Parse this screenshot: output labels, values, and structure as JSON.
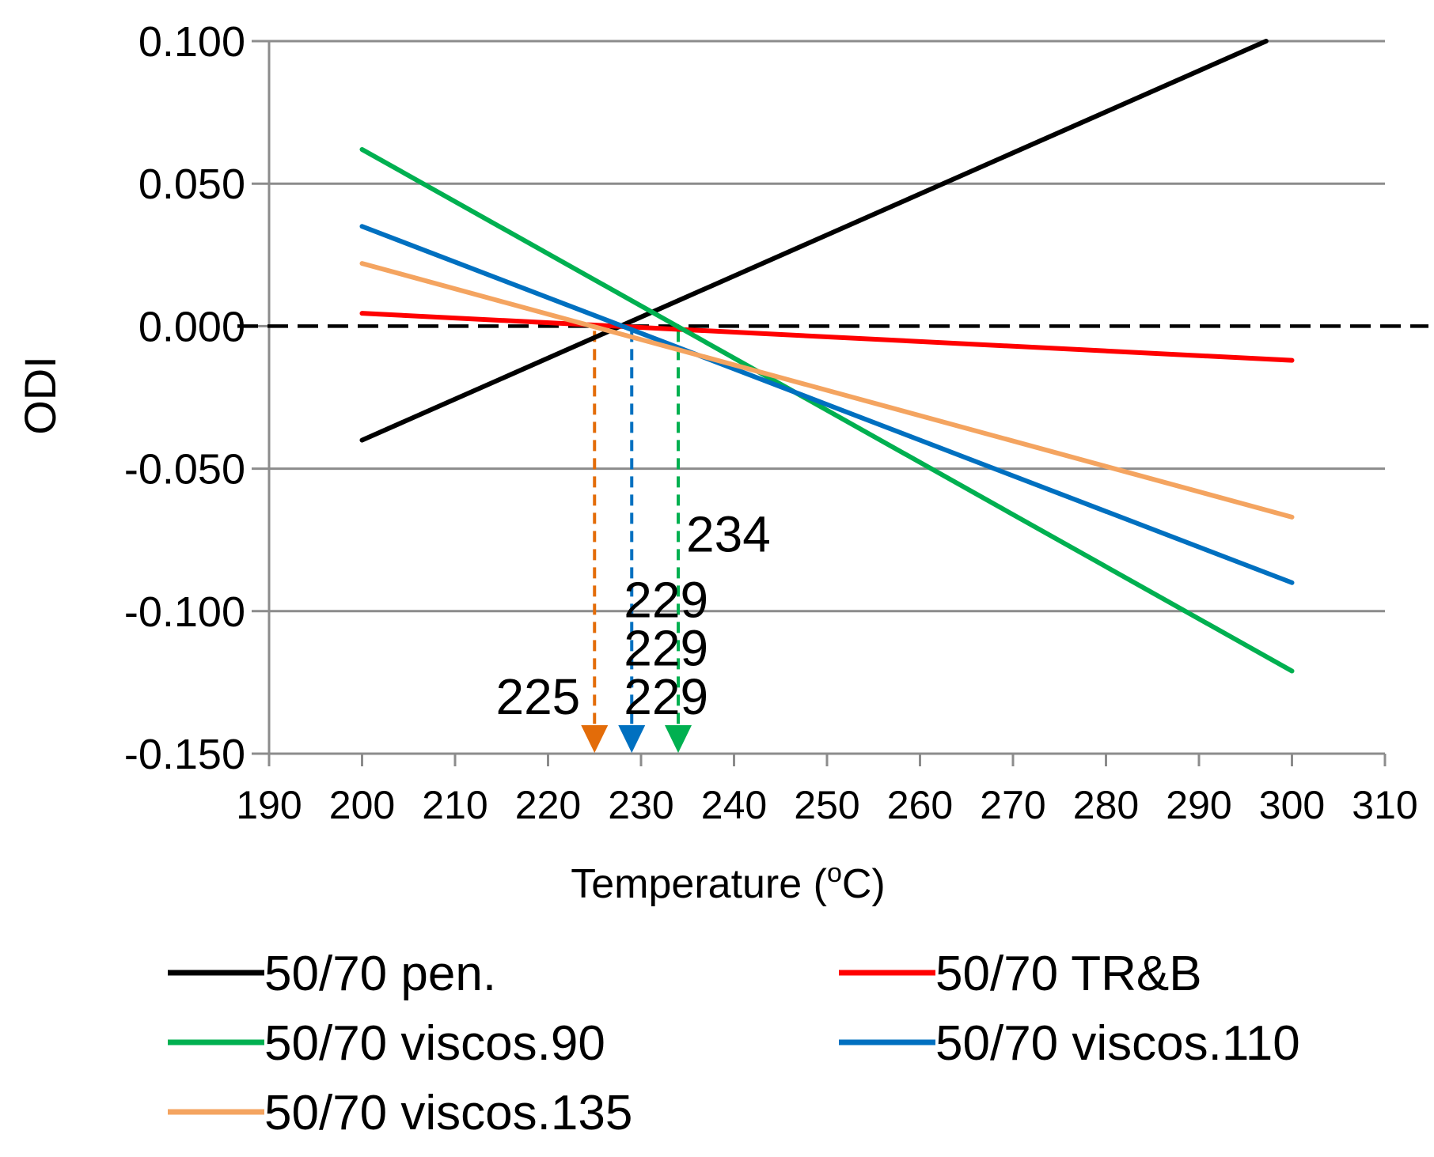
{
  "chart_data": {
    "type": "line",
    "title": "",
    "xlabel": "Temperature (",
    "xlabel_sup": "o",
    "xlabel_tail": "C)",
    "ylabel": "ODI",
    "xlim": [
      190,
      310
    ],
    "ylim": [
      -0.15,
      0.1
    ],
    "xticks": [
      190,
      200,
      210,
      220,
      230,
      240,
      250,
      260,
      270,
      280,
      290,
      300,
      310
    ],
    "xtick_labels": [
      "190",
      "200",
      "210",
      "220",
      "230",
      "240",
      "250",
      "260",
      "270",
      "280",
      "290",
      "300",
      "310"
    ],
    "yticks": [
      0.1,
      0.05,
      0.0,
      -0.05,
      -0.1,
      -0.15
    ],
    "ytick_labels": [
      "0.100",
      "0.050",
      "0.000",
      "-0.050",
      "-0.100",
      "-0.150"
    ],
    "grid": "horizontal",
    "legend_position": "bottom",
    "series": [
      {
        "name": "50/70 pen.",
        "color": "#000000",
        "x": [
          200,
          300
        ],
        "y": [
          -0.04,
          0.104
        ]
      },
      {
        "name": "50/70 TR&B",
        "color": "#ff0000",
        "x": [
          200,
          300
        ],
        "y": [
          0.0045,
          -0.012
        ]
      },
      {
        "name": "50/70 viscos.90",
        "color": "#00b050",
        "x": [
          200,
          300
        ],
        "y": [
          0.062,
          -0.121
        ]
      },
      {
        "name": "50/70 viscos.110",
        "color": "#0070c0",
        "x": [
          200,
          300
        ],
        "y": [
          0.035,
          -0.09
        ]
      },
      {
        "name": "50/70 viscos.135",
        "color": "#f4a460",
        "x": [
          200,
          300
        ],
        "y": [
          0.022,
          -0.067
        ]
      }
    ],
    "zero_line": {
      "y": 0.0,
      "color": "#000000",
      "style": "dashed"
    },
    "drop_lines": [
      {
        "x": 225,
        "color": "#e36c09"
      },
      {
        "x": 229,
        "color": "#0070c0"
      },
      {
        "x": 234,
        "color": "#00b050"
      }
    ],
    "annotations": [
      {
        "text": "234",
        "color": "#00b050",
        "x": 234,
        "y": -0.073
      },
      {
        "text": "229",
        "color": "#ff0000",
        "x": 229,
        "y": -0.096
      },
      {
        "text": "229",
        "color": "#0070c0",
        "x": 229,
        "y": -0.113
      },
      {
        "text": "229",
        "color": "#000000",
        "x": 229,
        "y": -0.13
      },
      {
        "text": "225",
        "color": "#e36c09",
        "x": 225,
        "y": -0.13
      }
    ]
  }
}
